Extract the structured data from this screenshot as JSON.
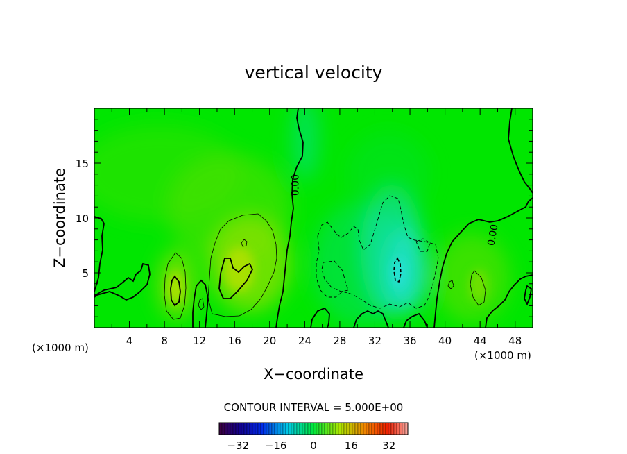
{
  "chart_data": {
    "type": "heatmap",
    "title": "vertical velocity",
    "xlabel": "X−coordinate",
    "ylabel": "Z−coordinate",
    "x_unit_left": "(×1000 m)",
    "x_unit_right": "(×1000 m)",
    "xlim": [
      0,
      50
    ],
    "ylim": [
      0,
      20
    ],
    "x_ticks": [
      4,
      8,
      12,
      16,
      20,
      24,
      28,
      32,
      36,
      40,
      44,
      48
    ],
    "x_tick_labels": [
      "4",
      "8",
      "12",
      "16",
      "20",
      "24",
      "28",
      "32",
      "36",
      "40",
      "44",
      "48"
    ],
    "y_ticks": [
      5,
      10,
      15
    ],
    "y_tick_labels": [
      "5",
      "10",
      "15"
    ],
    "contour_labels": [
      {
        "text": "0.00",
        "x": 23.3,
        "z": 13.0,
        "angle": -90
      },
      {
        "text": "0.00",
        "x": 45.8,
        "z": 8.4,
        "angle": -80
      }
    ],
    "contour_interval_text": "CONTOUR INTERVAL = 5.000E+00",
    "colorbar": {
      "min": -40,
      "max": 40,
      "tick_values": [
        -32,
        -16,
        0,
        16,
        32
      ],
      "tick_labels": [
        "−32",
        "−16",
        "0",
        "16",
        "32"
      ]
    },
    "features": [
      {
        "kind": "updraft",
        "x": 9.4,
        "z": 3.5,
        "value": 10
      },
      {
        "kind": "updraft",
        "x": 16.5,
        "z": 5.0,
        "value": 11
      },
      {
        "kind": "updraft",
        "x": 43.2,
        "z": 3.5,
        "value": 6
      },
      {
        "kind": "downdraft",
        "x": 34.0,
        "z": 5.5,
        "value": -10
      }
    ],
    "colors": {
      "background_field": "#00e600",
      "downdraft_field": "#12e0b0",
      "updraft_field": "#a8e000"
    }
  }
}
